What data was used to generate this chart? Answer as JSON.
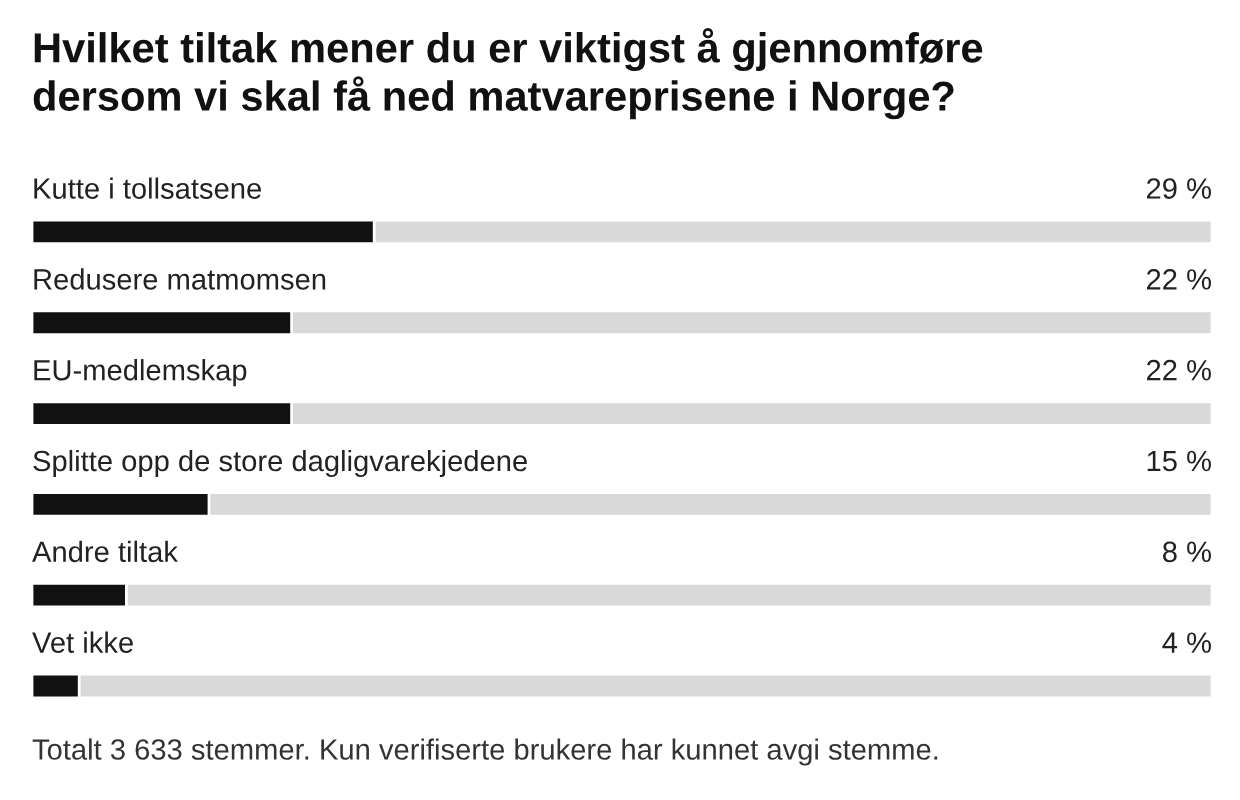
{
  "chart_data": {
    "type": "bar",
    "orientation": "horizontal",
    "title": "Hvilket tiltak mener du er viktigst å gjennomføre\ndersom vi skal få ned matvareprisene i Norge?",
    "categories": [
      "Kutte i tollsatsene",
      "Redusere matmomsen",
      "EU-medlemskap",
      "Splitte opp de store dagligvarekjedene",
      "Andre tiltak",
      "Vet ikke"
    ],
    "values": [
      29,
      22,
      22,
      15,
      8,
      4
    ],
    "value_labels": [
      "29 %",
      "22 %",
      "22 %",
      "15 %",
      "8 %",
      "4 %"
    ],
    "color": "#111111",
    "xlim": [
      0,
      100
    ],
    "annotations": [
      "Totalt 3 633 stemmer. Kun verifiserte brukere har kunnet avgi stemme."
    ]
  }
}
